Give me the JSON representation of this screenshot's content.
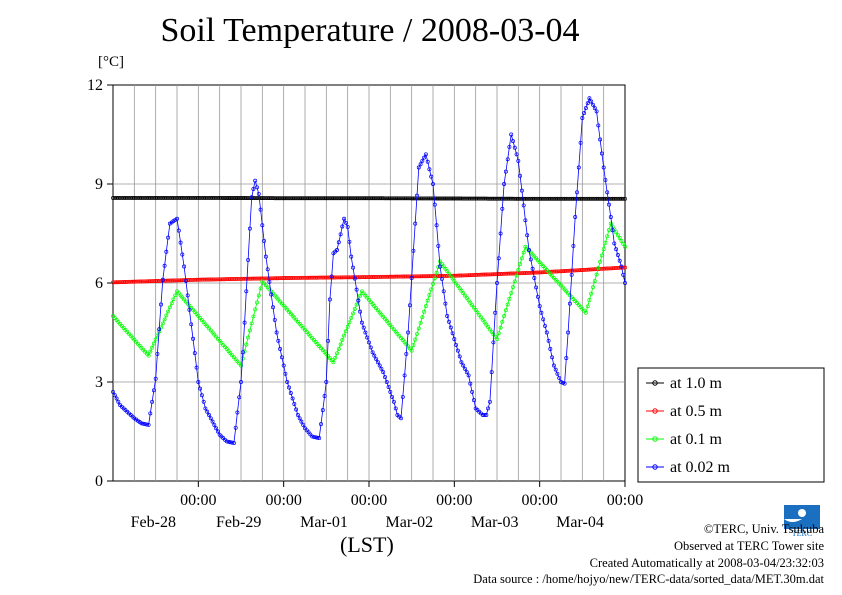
{
  "chart_data": {
    "type": "line",
    "title": "Soil Temperature / 2008-03-04",
    "unit_label": "[°C]",
    "xlabel": "(LST)",
    "ylim": [
      0,
      12
    ],
    "yticks": [
      0,
      3,
      6,
      9,
      12
    ],
    "x_unit": "hours",
    "xlim": [
      0,
      144
    ],
    "xticks": [
      {
        "time": "00:00",
        "date": "Feb-28"
      },
      {
        "time": "00:00",
        "date": "Feb-29"
      },
      {
        "time": "00:00",
        "date": "Mar-01"
      },
      {
        "time": "00:00",
        "date": "Mar-02"
      },
      {
        "time": "00:00",
        "date": "Mar-03"
      },
      {
        "time": "00:00",
        "date": "Mar-04"
      }
    ],
    "xtick_hours": [
      24,
      48,
      72,
      96,
      120,
      144
    ],
    "grid": true,
    "legend_position": "right",
    "series": [
      {
        "name": "at 1.0 m",
        "color": "#000000",
        "x": [
          0,
          24,
          48,
          72,
          96,
          120,
          144
        ],
        "values": [
          8.58,
          8.58,
          8.57,
          8.57,
          8.56,
          8.55,
          8.55
        ]
      },
      {
        "name": "at 0.5 m",
        "color": "#ff0000",
        "x": [
          0,
          24,
          48,
          72,
          96,
          120,
          144
        ],
        "values": [
          6.02,
          6.1,
          6.15,
          6.18,
          6.22,
          6.32,
          6.47
        ]
      },
      {
        "name": "at 0.1 m",
        "color": "#00ff00",
        "x": [
          0,
          10,
          18,
          36,
          42,
          62,
          70,
          84,
          92,
          108,
          116,
          133,
          140,
          144
        ],
        "values": [
          5.0,
          3.8,
          5.75,
          3.5,
          6.05,
          3.6,
          5.75,
          3.95,
          6.65,
          4.3,
          7.1,
          5.1,
          7.8,
          7.1
        ]
      },
      {
        "name": "at 0.02 m",
        "color": "#0000ff",
        "x": [
          0,
          2,
          6,
          8,
          10,
          12,
          14,
          16,
          18,
          20,
          24,
          26,
          30,
          32,
          34,
          36,
          37,
          39,
          40,
          41,
          43,
          46,
          49,
          52,
          54,
          56,
          58,
          60,
          61,
          62,
          63,
          65,
          66,
          67,
          70,
          73,
          76,
          79,
          80,
          81,
          83,
          85,
          86,
          88,
          90,
          92,
          94,
          98,
          100,
          102,
          104,
          105,
          106,
          108,
          110,
          112,
          114,
          117,
          120,
          122,
          124,
          126,
          127,
          128,
          130,
          132,
          134,
          136,
          138,
          140,
          141,
          143,
          144
        ],
        "values": [
          2.7,
          2.3,
          1.9,
          1.75,
          1.7,
          3.1,
          6.1,
          7.8,
          7.95,
          6.5,
          3.0,
          2.2,
          1.4,
          1.2,
          1.15,
          3.0,
          4.8,
          8.6,
          9.1,
          8.7,
          6.8,
          4.5,
          3.0,
          2.0,
          1.6,
          1.35,
          1.3,
          3.0,
          5.5,
          6.9,
          7.0,
          7.95,
          7.7,
          6.8,
          4.8,
          3.9,
          3.3,
          2.4,
          2.0,
          1.9,
          4.5,
          7.8,
          9.5,
          9.9,
          9.0,
          6.5,
          5.0,
          3.6,
          3.2,
          2.2,
          2.0,
          2.0,
          2.4,
          6.0,
          9.0,
          10.5,
          9.7,
          7.0,
          5.3,
          4.5,
          3.5,
          3.0,
          2.95,
          4.5,
          8.0,
          11.0,
          11.6,
          11.2,
          9.5,
          8.0,
          7.2,
          6.5,
          6.0
        ]
      }
    ]
  },
  "footer": {
    "copyright": "©TERC, Univ. Tsukuba",
    "observed": "Observed at TERC Tower site",
    "created": "Created Automatically at 2008-03-04/23:32:03",
    "source": "Data source : /home/hojyo/new/TERC-data/sorted_data/MET.30m.dat"
  },
  "logo": {
    "text": "TERC",
    "color": "#1a6fc0"
  }
}
